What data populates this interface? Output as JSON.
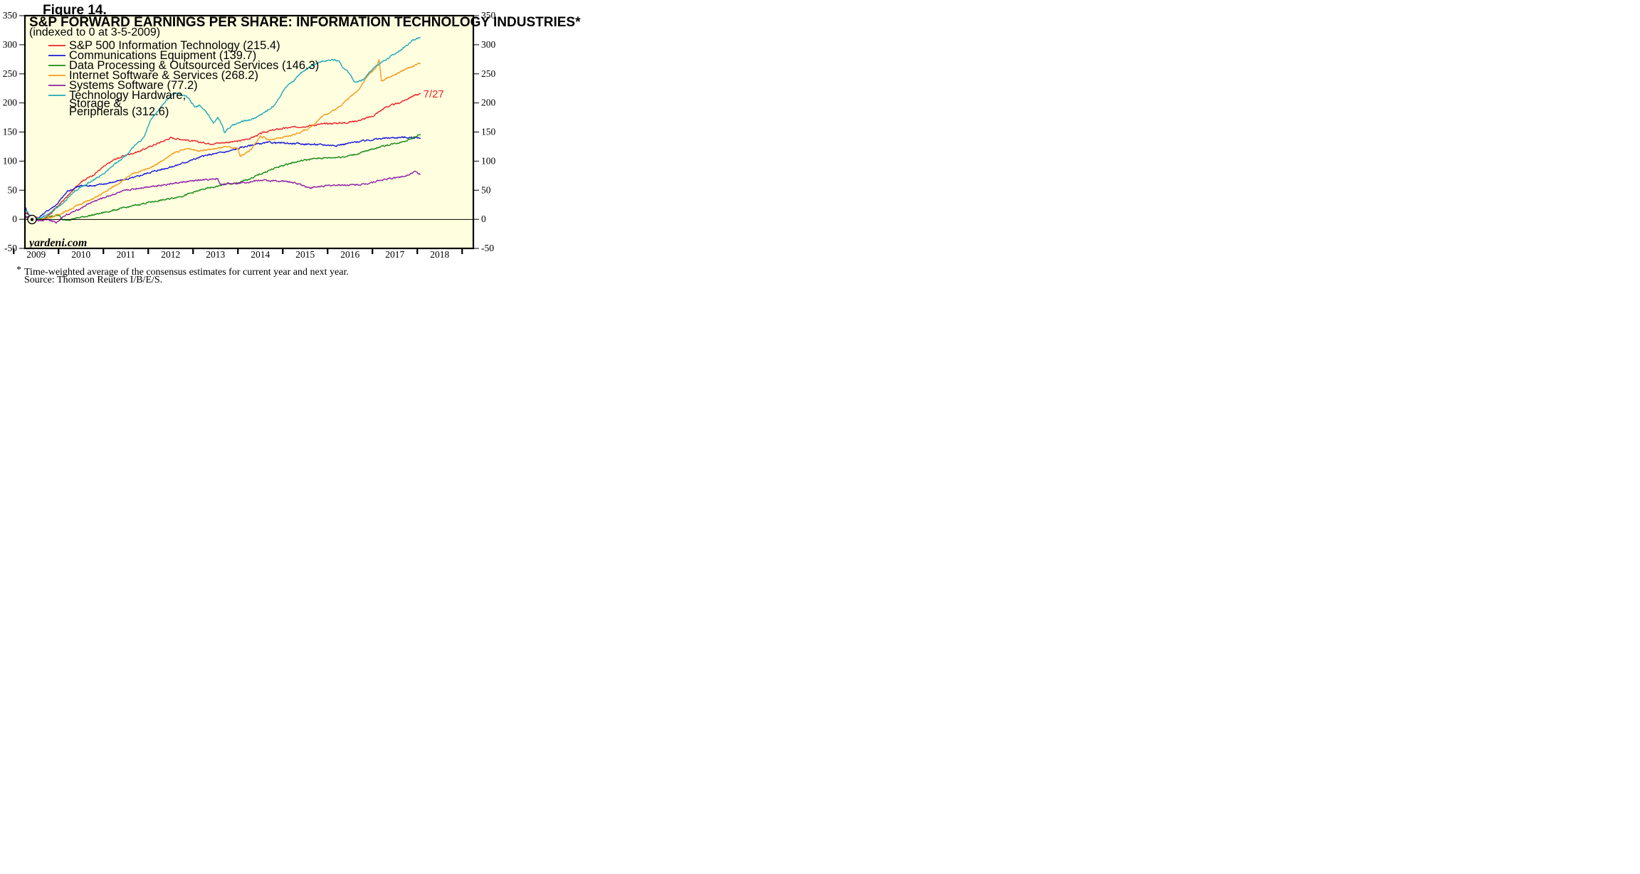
{
  "figure_label": "Figure 14.",
  "footnote": {
    "marker": "*",
    "line1": "Time-weighted average of the consensus estimates for current year and next year.",
    "line2": "Source: Thomson Reuters I/B/E/S."
  },
  "watermark": "yardeni.com",
  "colors": {
    "plot_background": "#ffffe0",
    "frame": "#000000",
    "zero_line": "#000000"
  },
  "chart_data": {
    "type": "line",
    "title": "S&P FORWARD EARNINGS PER SHARE: INFORMATION TECHNOLOGY INDUSTRIES*",
    "subtitle": "(indexed to 0 at 3-5-2009)",
    "ylim": [
      -50,
      350
    ],
    "yticks": [
      -50,
      0,
      50,
      100,
      150,
      200,
      250,
      300,
      350
    ],
    "xlim": [
      2008.75,
      2018.75
    ],
    "xtick_labels": [
      "2009",
      "2010",
      "2011",
      "2012",
      "2013",
      "2014",
      "2015",
      "2016",
      "2017",
      "2018"
    ],
    "x_range_label": [
      "2009",
      "2018"
    ],
    "grid": false,
    "legend_position": "top-left",
    "end_label": "7/27",
    "series": [
      {
        "name": "S&P 500 Information Technology (215.4)",
        "color": "#e8242a",
        "points": [
          [
            2008.75,
            11
          ],
          [
            2008.9,
            6
          ],
          [
            2009.17,
            0
          ],
          [
            2009.35,
            12
          ],
          [
            2009.55,
            28
          ],
          [
            2009.8,
            48
          ],
          [
            2010.0,
            65
          ],
          [
            2010.25,
            75
          ],
          [
            2010.5,
            90
          ],
          [
            2010.75,
            103
          ],
          [
            2011.0,
            110
          ],
          [
            2011.3,
            117
          ],
          [
            2011.6,
            127
          ],
          [
            2011.85,
            135
          ],
          [
            2012.0,
            140
          ],
          [
            2012.3,
            137
          ],
          [
            2012.6,
            133
          ],
          [
            2012.9,
            130
          ],
          [
            2013.2,
            132
          ],
          [
            2013.5,
            134
          ],
          [
            2013.8,
            140
          ],
          [
            2014.1,
            150
          ],
          [
            2014.4,
            155
          ],
          [
            2014.7,
            158
          ],
          [
            2015.0,
            160
          ],
          [
            2015.3,
            163
          ],
          [
            2015.6,
            165
          ],
          [
            2015.9,
            166
          ],
          [
            2016.2,
            170
          ],
          [
            2016.5,
            177
          ],
          [
            2016.8,
            193
          ],
          [
            2017.1,
            200
          ],
          [
            2017.4,
            212
          ],
          [
            2017.57,
            215.4
          ]
        ]
      },
      {
        "name": "Communications Equipment (139.7)",
        "color": "#1a1ad8",
        "points": [
          [
            2008.75,
            22
          ],
          [
            2008.82,
            10
          ],
          [
            2008.9,
            0
          ],
          [
            2009.05,
            2
          ],
          [
            2009.2,
            12
          ],
          [
            2009.45,
            25
          ],
          [
            2009.7,
            48
          ],
          [
            2010.0,
            58
          ],
          [
            2010.3,
            58
          ],
          [
            2010.6,
            62
          ],
          [
            2010.9,
            67
          ],
          [
            2011.2,
            72
          ],
          [
            2011.5,
            80
          ],
          [
            2011.8,
            86
          ],
          [
            2012.1,
            92
          ],
          [
            2012.4,
            100
          ],
          [
            2012.7,
            108
          ],
          [
            2013.0,
            113
          ],
          [
            2013.3,
            117
          ],
          [
            2013.6,
            124
          ],
          [
            2013.9,
            129
          ],
          [
            2014.2,
            132
          ],
          [
            2014.5,
            131
          ],
          [
            2014.8,
            130
          ],
          [
            2015.1,
            129
          ],
          [
            2015.4,
            128
          ],
          [
            2015.7,
            127
          ],
          [
            2016.0,
            131
          ],
          [
            2016.3,
            135
          ],
          [
            2016.6,
            138
          ],
          [
            2016.9,
            140
          ],
          [
            2017.2,
            141
          ],
          [
            2017.57,
            139.7
          ]
        ]
      },
      {
        "name": "Data Processing & Outsourced Services (146.3)",
        "color": "#1a8a1a",
        "points": [
          [
            2008.75,
            3
          ],
          [
            2009.0,
            0
          ],
          [
            2009.2,
            2
          ],
          [
            2009.5,
            8
          ],
          [
            2009.6,
            -2
          ],
          [
            2009.9,
            2
          ],
          [
            2010.3,
            8
          ],
          [
            2010.7,
            15
          ],
          [
            2011.1,
            22
          ],
          [
            2011.5,
            29
          ],
          [
            2011.9,
            34
          ],
          [
            2012.3,
            41
          ],
          [
            2012.7,
            51
          ],
          [
            2013.0,
            56
          ],
          [
            2013.2,
            60
          ],
          [
            2013.5,
            62
          ],
          [
            2013.8,
            71
          ],
          [
            2014.1,
            81
          ],
          [
            2014.4,
            90
          ],
          [
            2014.7,
            97
          ],
          [
            2015.0,
            102
          ],
          [
            2015.3,
            105
          ],
          [
            2015.6,
            106
          ],
          [
            2015.9,
            108
          ],
          [
            2016.2,
            113
          ],
          [
            2016.5,
            121
          ],
          [
            2016.8,
            127
          ],
          [
            2017.1,
            132
          ],
          [
            2017.35,
            138
          ],
          [
            2017.57,
            146.3
          ]
        ]
      },
      {
        "name": "Internet Software & Services (268.2)",
        "color": "#f59a1b",
        "points": [
          [
            2008.75,
            5
          ],
          [
            2008.9,
            0
          ],
          [
            2009.1,
            0
          ],
          [
            2009.4,
            5
          ],
          [
            2009.7,
            15
          ],
          [
            2010.0,
            27
          ],
          [
            2010.3,
            36
          ],
          [
            2010.6,
            50
          ],
          [
            2010.9,
            65
          ],
          [
            2011.2,
            80
          ],
          [
            2011.5,
            87
          ],
          [
            2011.8,
            100
          ],
          [
            2012.1,
            115
          ],
          [
            2012.4,
            122
          ],
          [
            2012.6,
            118
          ],
          [
            2012.9,
            120
          ],
          [
            2013.2,
            124
          ],
          [
            2013.5,
            122
          ],
          [
            2013.55,
            108
          ],
          [
            2013.8,
            120
          ],
          [
            2014.0,
            143
          ],
          [
            2014.2,
            137
          ],
          [
            2014.5,
            140
          ],
          [
            2014.8,
            147
          ],
          [
            2015.1,
            157
          ],
          [
            2015.4,
            178
          ],
          [
            2015.7,
            190
          ],
          [
            2016.0,
            210
          ],
          [
            2016.2,
            224
          ],
          [
            2016.4,
            247
          ],
          [
            2016.6,
            263
          ],
          [
            2016.65,
            275
          ],
          [
            2016.7,
            238
          ],
          [
            2016.9,
            245
          ],
          [
            2017.1,
            252
          ],
          [
            2017.3,
            260
          ],
          [
            2017.57,
            268.2
          ]
        ]
      },
      {
        "name": "Systems Software (77.2)",
        "color": "#8d1fa6",
        "points": [
          [
            2008.75,
            5
          ],
          [
            2008.9,
            2
          ],
          [
            2009.05,
            -2
          ],
          [
            2009.25,
            0
          ],
          [
            2009.45,
            -6
          ],
          [
            2009.6,
            5
          ],
          [
            2009.9,
            15
          ],
          [
            2010.2,
            28
          ],
          [
            2010.5,
            37
          ],
          [
            2010.8,
            45
          ],
          [
            2011.1,
            51
          ],
          [
            2011.4,
            55
          ],
          [
            2011.7,
            58
          ],
          [
            2012.0,
            61
          ],
          [
            2012.3,
            64
          ],
          [
            2012.6,
            67
          ],
          [
            2012.9,
            68
          ],
          [
            2013.05,
            70
          ],
          [
            2013.1,
            60
          ],
          [
            2013.4,
            62
          ],
          [
            2013.7,
            64
          ],
          [
            2014.0,
            67
          ],
          [
            2014.3,
            66
          ],
          [
            2014.6,
            65
          ],
          [
            2014.9,
            60
          ],
          [
            2015.1,
            54
          ],
          [
            2015.4,
            57
          ],
          [
            2015.7,
            59
          ],
          [
            2016.0,
            59
          ],
          [
            2016.3,
            60
          ],
          [
            2016.6,
            66
          ],
          [
            2016.9,
            70
          ],
          [
            2017.2,
            74
          ],
          [
            2017.45,
            82
          ],
          [
            2017.57,
            77.2
          ]
        ]
      },
      {
        "name": "Technology Hardware,\nStorage &\nPeripherals (312.6)",
        "color": "#1fa8b8",
        "points": [
          [
            2008.75,
            18
          ],
          [
            2008.85,
            8
          ],
          [
            2008.95,
            2
          ],
          [
            2009.1,
            2
          ],
          [
            2009.35,
            13
          ],
          [
            2009.6,
            28
          ],
          [
            2009.85,
            48
          ],
          [
            2010.15,
            62
          ],
          [
            2010.45,
            75
          ],
          [
            2010.75,
            95
          ],
          [
            2011.0,
            110
          ],
          [
            2011.2,
            126
          ],
          [
            2011.4,
            140
          ],
          [
            2011.55,
            170
          ],
          [
            2011.8,
            195
          ],
          [
            2011.95,
            208
          ],
          [
            2012.1,
            218
          ],
          [
            2012.2,
            215
          ],
          [
            2012.35,
            212
          ],
          [
            2012.55,
            192
          ],
          [
            2012.65,
            196
          ],
          [
            2012.8,
            185
          ],
          [
            2012.95,
            165
          ],
          [
            2013.05,
            175
          ],
          [
            2013.15,
            162
          ],
          [
            2013.2,
            150
          ],
          [
            2013.35,
            160
          ],
          [
            2013.6,
            168
          ],
          [
            2013.85,
            173
          ],
          [
            2014.1,
            184
          ],
          [
            2014.3,
            195
          ],
          [
            2014.55,
            225
          ],
          [
            2014.75,
            238
          ],
          [
            2014.9,
            252
          ],
          [
            2015.15,
            265
          ],
          [
            2015.4,
            272
          ],
          [
            2015.6,
            275
          ],
          [
            2015.75,
            272
          ],
          [
            2015.85,
            260
          ],
          [
            2016.0,
            250
          ],
          [
            2016.1,
            235
          ],
          [
            2016.3,
            240
          ],
          [
            2016.5,
            258
          ],
          [
            2016.7,
            270
          ],
          [
            2016.95,
            282
          ],
          [
            2017.2,
            295
          ],
          [
            2017.4,
            308
          ],
          [
            2017.57,
            312.6
          ]
        ]
      }
    ]
  }
}
